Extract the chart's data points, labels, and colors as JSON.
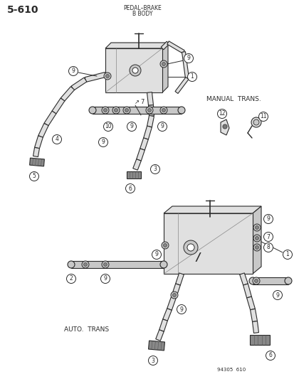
{
  "page_num": "5-610",
  "title_line1": "PEDAL–BRAKE",
  "title_line2": "B BODY",
  "manual_trans_label": "MANUAL  TRANS.",
  "auto_trans_label": "AUTO.  TRANS",
  "figure_num": "94305  610",
  "bg_color": "#ffffff",
  "line_color": "#2a2a2a",
  "gray_fill": "#c8c8c8",
  "dark_gray": "#888888",
  "light_gray": "#e0e0e0"
}
